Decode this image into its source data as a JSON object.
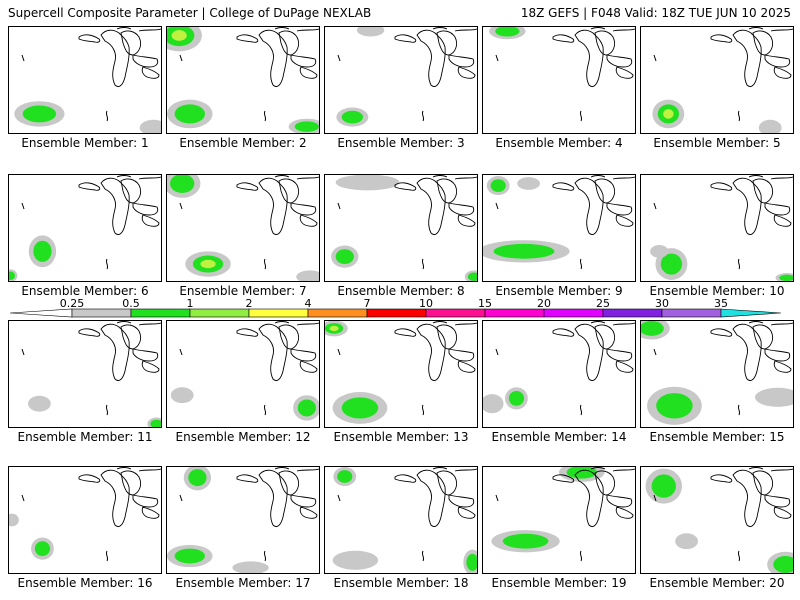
{
  "header": {
    "left": "Supercell Composite Parameter | College of DuPage NEXLAB",
    "right": "18Z GEFS | F048 Valid: 18Z TUE JUN 10 2025"
  },
  "member_prefix": "Ensemble Member:",
  "members": [
    {
      "label": "Ensemble Member: 1",
      "blobs": [
        [
          0.2,
          0.82,
          0.11,
          0.08,
          2
        ],
        [
          0.95,
          0.95,
          0.06,
          0.05,
          1
        ]
      ]
    },
    {
      "label": "Ensemble Member: 2",
      "blobs": [
        [
          0.08,
          0.08,
          0.1,
          0.1,
          3
        ],
        [
          0.15,
          0.82,
          0.1,
          0.09,
          2
        ],
        [
          0.92,
          0.94,
          0.08,
          0.05,
          2
        ]
      ]
    },
    {
      "label": "Ensemble Member: 3",
      "blobs": [
        [
          0.18,
          0.85,
          0.07,
          0.06,
          2
        ],
        [
          0.3,
          0.03,
          0.06,
          0.04,
          1
        ]
      ]
    },
    {
      "label": "Ensemble Member: 4",
      "blobs": [
        [
          0.16,
          0.04,
          0.08,
          0.05,
          2
        ]
      ]
    },
    {
      "label": "Ensemble Member: 5",
      "blobs": [
        [
          0.18,
          0.82,
          0.07,
          0.09,
          3
        ],
        [
          0.85,
          0.95,
          0.05,
          0.05,
          1
        ]
      ]
    },
    {
      "label": "Ensemble Member: 6",
      "blobs": [
        [
          0.22,
          0.72,
          0.06,
          0.1,
          2
        ],
        [
          0.01,
          0.95,
          0.03,
          0.04,
          2
        ]
      ]
    },
    {
      "label": "Ensemble Member: 7",
      "blobs": [
        [
          0.1,
          0.08,
          0.08,
          0.09,
          2
        ],
        [
          0.27,
          0.84,
          0.1,
          0.08,
          3
        ],
        [
          0.94,
          0.96,
          0.06,
          0.04,
          1
        ]
      ]
    },
    {
      "label": "Ensemble Member: 8",
      "blobs": [
        [
          0.13,
          0.77,
          0.06,
          0.07,
          2
        ],
        [
          0.28,
          0.07,
          0.14,
          0.05,
          1
        ],
        [
          0.98,
          0.96,
          0.04,
          0.04,
          2
        ]
      ]
    },
    {
      "label": "Ensemble Member: 9",
      "blobs": [
        [
          0.1,
          0.1,
          0.05,
          0.06,
          2
        ],
        [
          0.27,
          0.72,
          0.2,
          0.07,
          2
        ],
        [
          0.3,
          0.08,
          0.05,
          0.04,
          1
        ]
      ]
    },
    {
      "label": "Ensemble Member: 10",
      "blobs": [
        [
          0.2,
          0.84,
          0.07,
          0.1,
          2
        ],
        [
          0.12,
          0.72,
          0.04,
          0.04,
          1
        ],
        [
          0.96,
          0.97,
          0.05,
          0.03,
          2
        ]
      ]
    },
    {
      "label": "Ensemble Member: 11",
      "blobs": [
        [
          0.2,
          0.78,
          0.05,
          0.05,
          1
        ],
        [
          0.97,
          0.97,
          0.04,
          0.04,
          2
        ]
      ]
    },
    {
      "label": "Ensemble Member: 12",
      "blobs": [
        [
          0.1,
          0.7,
          0.05,
          0.05,
          1
        ],
        [
          0.92,
          0.82,
          0.06,
          0.08,
          2
        ]
      ]
    },
    {
      "label": "Ensemble Member: 13",
      "blobs": [
        [
          0.23,
          0.82,
          0.12,
          0.1,
          2
        ],
        [
          0.06,
          0.07,
          0.06,
          0.05,
          3
        ]
      ]
    },
    {
      "label": "Ensemble Member: 14",
      "blobs": [
        [
          0.22,
          0.73,
          0.05,
          0.07,
          2
        ],
        [
          0.06,
          0.78,
          0.05,
          0.06,
          1
        ]
      ]
    },
    {
      "label": "Ensemble Member: 15",
      "blobs": [
        [
          0.07,
          0.07,
          0.08,
          0.07,
          2
        ],
        [
          0.22,
          0.8,
          0.12,
          0.12,
          2
        ],
        [
          0.9,
          0.72,
          0.1,
          0.06,
          1
        ]
      ]
    },
    {
      "label": "Ensemble Member: 16",
      "blobs": [
        [
          0.22,
          0.77,
          0.05,
          0.07,
          2
        ],
        [
          0.02,
          0.5,
          0.03,
          0.04,
          1
        ]
      ]
    },
    {
      "label": "Ensemble Member: 17",
      "blobs": [
        [
          0.2,
          0.1,
          0.06,
          0.08,
          2
        ],
        [
          0.15,
          0.84,
          0.1,
          0.07,
          2
        ],
        [
          0.55,
          0.95,
          0.08,
          0.04,
          1
        ]
      ]
    },
    {
      "label": "Ensemble Member: 18",
      "blobs": [
        [
          0.13,
          0.09,
          0.05,
          0.06,
          2
        ],
        [
          0.2,
          0.88,
          0.1,
          0.06,
          1
        ],
        [
          0.97,
          0.9,
          0.04,
          0.08,
          2
        ]
      ]
    },
    {
      "label": "Ensemble Member: 19",
      "blobs": [
        [
          0.65,
          0.05,
          0.1,
          0.06,
          2
        ],
        [
          0.28,
          0.7,
          0.15,
          0.07,
          2
        ]
      ]
    },
    {
      "label": "Ensemble Member: 20",
      "blobs": [
        [
          0.15,
          0.18,
          0.08,
          0.11,
          2
        ],
        [
          0.3,
          0.7,
          0.05,
          0.05,
          1
        ],
        [
          0.95,
          0.92,
          0.08,
          0.08,
          2
        ]
      ]
    }
  ],
  "colorbar": {
    "tick_labels": [
      "0.25",
      "0.5",
      "1",
      "2",
      "4",
      "7",
      "10",
      "15",
      "20",
      "25",
      "30",
      "35"
    ],
    "colors": [
      "#c8c8c8",
      "#20e020",
      "#90ee40",
      "#ffff40",
      "#ff9020",
      "#ff0000",
      "#ff1090",
      "#ff00d0",
      "#e000ff",
      "#8020e0",
      "#a060e0",
      "#20e0e0"
    ]
  },
  "fill_colors": {
    "light": "#c8c8c8",
    "mid": "#20e020",
    "high": "#c0f040"
  }
}
